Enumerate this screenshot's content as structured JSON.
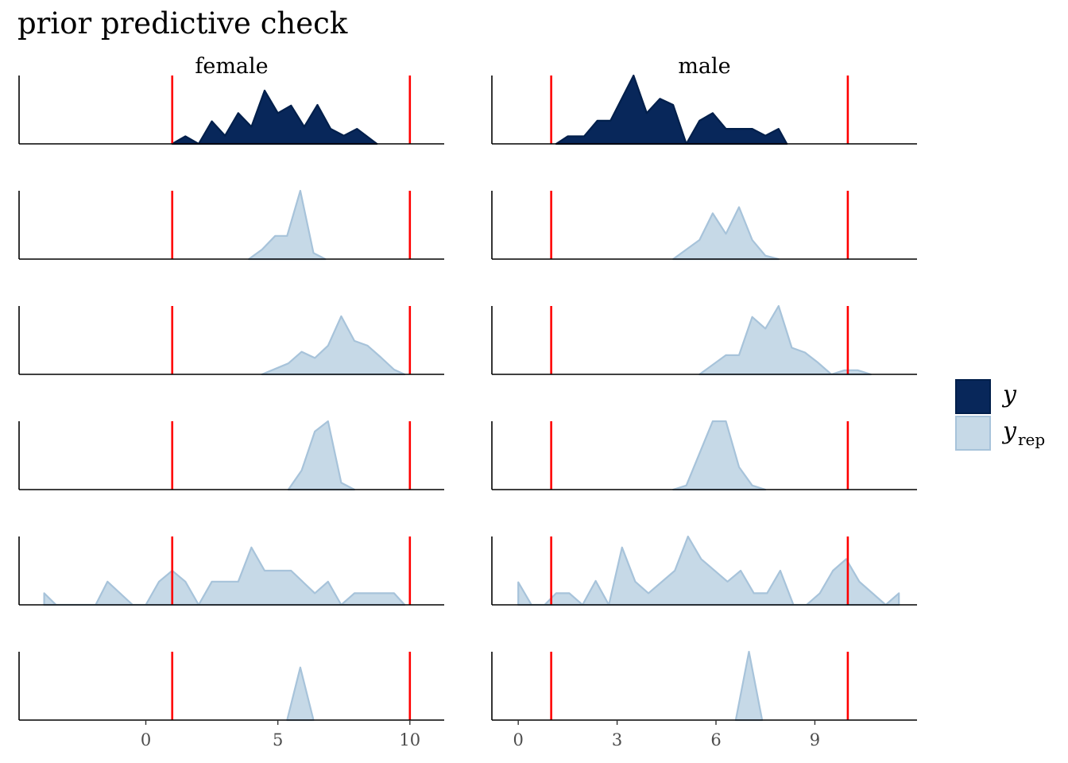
{
  "chart_data": {
    "type": "area",
    "title": "prior predictive check",
    "xlabel": "",
    "ylabel": "",
    "colors": {
      "y": "#08275a",
      "y_outline": "#011f4b",
      "yrep": "#c6d9e7",
      "yrep_outline": "#a7c3da",
      "reference_line": "#ff0000"
    },
    "legend": {
      "position": "right",
      "entries": [
        {
          "key": "y",
          "label": "y",
          "subscript": ""
        },
        {
          "key": "yrep",
          "label": "y",
          "subscript": "rep"
        }
      ]
    },
    "facets": [
      {
        "name": "female",
        "xlim": [
          -4.8,
          11.3
        ],
        "ticks": [
          0,
          5,
          10
        ],
        "tick_labels": [
          "0",
          "5",
          "10"
        ],
        "reference_lines": [
          1,
          10
        ],
        "rows": [
          {
            "kind": "y",
            "points": [
              [
                1.0,
                0
              ],
              [
                1.5,
                0.11
              ],
              [
                2.0,
                0
              ],
              [
                2.5,
                0.33
              ],
              [
                3.0,
                0.12
              ],
              [
                3.5,
                0.45
              ],
              [
                4.0,
                0.25
              ],
              [
                4.5,
                0.78
              ],
              [
                5.0,
                0.45
              ],
              [
                5.5,
                0.56
              ],
              [
                6.0,
                0.25
              ],
              [
                6.5,
                0.57
              ],
              [
                7.0,
                0.22
              ],
              [
                7.5,
                0.12
              ],
              [
                8.0,
                0.22
              ],
              [
                8.75,
                0
              ]
            ]
          },
          {
            "kind": "yrep",
            "points": [
              [
                3.9,
                0
              ],
              [
                4.4,
                0.14
              ],
              [
                4.9,
                0.34
              ],
              [
                5.35,
                0.34
              ],
              [
                5.85,
                1.0
              ],
              [
                6.35,
                0.09
              ],
              [
                6.8,
                0
              ]
            ]
          },
          {
            "kind": "yrep",
            "points": [
              [
                4.4,
                0
              ],
              [
                5.4,
                0.16
              ],
              [
                5.9,
                0.33
              ],
              [
                6.4,
                0.24
              ],
              [
                6.9,
                0.42
              ],
              [
                7.4,
                0.85
              ],
              [
                7.9,
                0.49
              ],
              [
                8.4,
                0.42
              ],
              [
                8.9,
                0.25
              ],
              [
                9.4,
                0.07
              ],
              [
                9.8,
                0
              ]
            ]
          },
          {
            "kind": "yrep",
            "points": [
              [
                5.4,
                0
              ],
              [
                5.9,
                0.28
              ],
              [
                6.4,
                0.85
              ],
              [
                6.9,
                1.0
              ],
              [
                7.4,
                0.1
              ],
              [
                7.9,
                0
              ]
            ]
          },
          {
            "kind": "yrep",
            "points": [
              [
                -3.85,
                0.17
              ],
              [
                -3.4,
                0
              ],
              [
                -1.9,
                0
              ],
              [
                -1.45,
                0.34
              ],
              [
                -0.5,
                0
              ],
              [
                0.0,
                0
              ],
              [
                0.5,
                0.34
              ],
              [
                1.0,
                0.5
              ],
              [
                1.5,
                0.34
              ],
              [
                2.0,
                0
              ],
              [
                2.5,
                0.34
              ],
              [
                3.5,
                0.34
              ],
              [
                4.0,
                0.84
              ],
              [
                4.5,
                0.5
              ],
              [
                5.5,
                0.5
              ],
              [
                6.4,
                0.17
              ],
              [
                6.9,
                0.34
              ],
              [
                7.4,
                0
              ],
              [
                7.9,
                0.17
              ],
              [
                9.4,
                0.17
              ],
              [
                9.8,
                0
              ]
            ]
          },
          {
            "kind": "yrep",
            "points": [
              [
                5.35,
                0
              ],
              [
                5.85,
                0.77
              ],
              [
                6.35,
                0
              ]
            ]
          }
        ]
      },
      {
        "name": "male",
        "xlim": [
          -0.8,
          12.1
        ],
        "ticks": [
          0,
          3,
          6,
          9
        ],
        "tick_labels": [
          "0",
          "3",
          "6",
          "9"
        ],
        "reference_lines": [
          1,
          10
        ],
        "rows": [
          {
            "kind": "y",
            "points": [
              [
                1.15,
                0
              ],
              [
                1.5,
                0.11
              ],
              [
                2.0,
                0.11
              ],
              [
                2.4,
                0.34
              ],
              [
                2.8,
                0.34
              ],
              [
                3.5,
                1.0
              ],
              [
                3.9,
                0.45
              ],
              [
                4.3,
                0.66
              ],
              [
                4.7,
                0.57
              ],
              [
                5.1,
                0
              ],
              [
                5.5,
                0.34
              ],
              [
                5.9,
                0.45
              ],
              [
                6.3,
                0.22
              ],
              [
                7.1,
                0.22
              ],
              [
                7.5,
                0.12
              ],
              [
                7.9,
                0.22
              ],
              [
                8.15,
                0
              ]
            ]
          },
          {
            "kind": "yrep",
            "points": [
              [
                4.7,
                0
              ],
              [
                5.5,
                0.28
              ],
              [
                5.9,
                0.67
              ],
              [
                6.3,
                0.37
              ],
              [
                6.7,
                0.76
              ],
              [
                7.1,
                0.28
              ],
              [
                7.5,
                0.05
              ],
              [
                7.9,
                0
              ]
            ]
          },
          {
            "kind": "yrep",
            "points": [
              [
                5.5,
                0
              ],
              [
                6.3,
                0.28
              ],
              [
                6.7,
                0.28
              ],
              [
                7.1,
                0.84
              ],
              [
                7.5,
                0.67
              ],
              [
                7.9,
                1.0
              ],
              [
                8.3,
                0.39
              ],
              [
                8.7,
                0.32
              ],
              [
                9.1,
                0.17
              ],
              [
                9.5,
                0
              ],
              [
                9.9,
                0.06
              ],
              [
                10.3,
                0.06
              ],
              [
                10.7,
                0
              ]
            ]
          },
          {
            "kind": "yrep",
            "points": [
              [
                4.7,
                0
              ],
              [
                5.1,
                0.06
              ],
              [
                5.5,
                0.53
              ],
              [
                5.9,
                1.0
              ],
              [
                6.3,
                1.0
              ],
              [
                6.7,
                0.33
              ],
              [
                7.1,
                0.06
              ],
              [
                7.5,
                0
              ]
            ]
          },
          {
            "kind": "yrep",
            "points": [
              [
                0.0,
                0.33
              ],
              [
                0.4,
                0
              ],
              [
                0.8,
                0
              ],
              [
                1.15,
                0.17
              ],
              [
                1.55,
                0.17
              ],
              [
                1.95,
                0
              ],
              [
                2.35,
                0.35
              ],
              [
                2.75,
                0
              ],
              [
                3.15,
                0.84
              ],
              [
                3.55,
                0.34
              ],
              [
                3.95,
                0.17
              ],
              [
                4.75,
                0.5
              ],
              [
                5.15,
                1.0
              ],
              [
                5.55,
                0.67
              ],
              [
                6.35,
                0.34
              ],
              [
                6.75,
                0.5
              ],
              [
                7.15,
                0.17
              ],
              [
                7.55,
                0.17
              ],
              [
                7.95,
                0.5
              ],
              [
                8.35,
                0
              ],
              [
                8.75,
                0
              ],
              [
                9.15,
                0.17
              ],
              [
                9.55,
                0.5
              ],
              [
                9.95,
                0.67
              ],
              [
                10.35,
                0.34
              ],
              [
                11.15,
                0
              ],
              [
                11.55,
                0.17
              ]
            ]
          },
          {
            "kind": "yrep",
            "points": [
              [
                6.6,
                0
              ],
              [
                7.0,
                1.0
              ],
              [
                7.4,
                0
              ]
            ]
          }
        ]
      }
    ]
  }
}
